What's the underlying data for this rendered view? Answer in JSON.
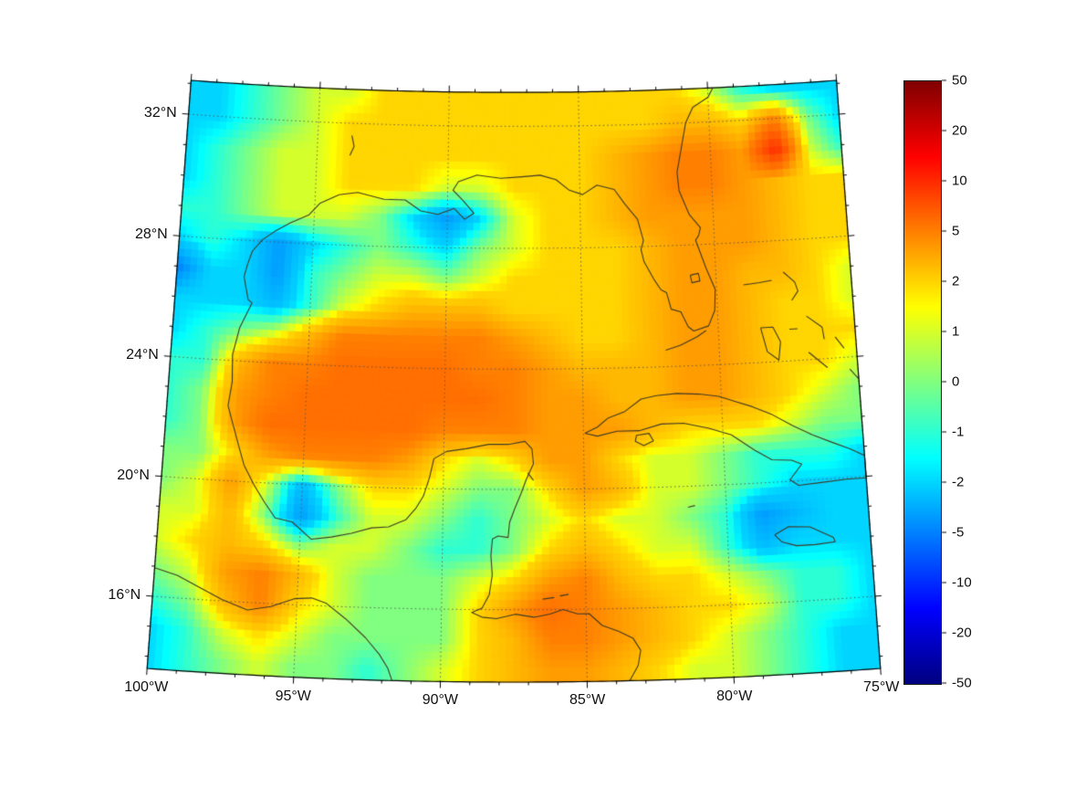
{
  "figure": {
    "background": "#ffffff"
  },
  "chart_data": {
    "type": "heatmap",
    "title": "",
    "projection": {
      "type": "lambert-conformal-conic",
      "center_lon": -87.5,
      "standard_parallels": [
        15,
        25
      ]
    },
    "lon_range": [
      -100,
      -75
    ],
    "lat_range": [
      13.6,
      33.1
    ],
    "lon_ticks": [
      "100°W",
      "95°W",
      "90°W",
      "85°W",
      "80°W",
      "75°W"
    ],
    "lon_tick_values": [
      -100,
      -95,
      -90,
      -85,
      -80,
      -75
    ],
    "lat_ticks": [
      "32°N",
      "28°N",
      "24°N",
      "20°N",
      "16°N"
    ],
    "lat_tick_values": [
      32,
      28,
      24,
      20,
      16
    ],
    "colorbar_ticks": [
      50,
      20,
      10,
      5,
      2,
      1,
      0,
      -1,
      -2,
      -5,
      -10,
      -20,
      -50
    ],
    "color_levels": [
      -50,
      -20,
      -10,
      -5,
      -2,
      -1,
      0,
      1,
      2,
      5,
      10,
      20,
      50
    ],
    "colormap": "jet",
    "colormap_stops": [
      {
        "color": "#00007f",
        "pos": 0
      },
      {
        "color": "#0000ff",
        "pos": 12.5
      },
      {
        "color": "#00ffff",
        "pos": 37.5
      },
      {
        "color": "#ffff00",
        "pos": 62.5
      },
      {
        "color": "#ff0000",
        "pos": 87.5
      },
      {
        "color": "#7f0000",
        "pos": 100
      }
    ],
    "coastline_color": "#403a26",
    "grid": {
      "lon_start": -100,
      "lon_step": 1.25,
      "lat_start": 33,
      "lat_step": -1,
      "values": [
        [
          -2,
          -2,
          -1,
          0,
          1,
          1,
          2,
          2,
          2,
          2,
          2,
          2,
          2,
          2,
          2,
          2,
          1,
          -1,
          -2,
          -2,
          -2
        ],
        [
          -2,
          -2,
          -1,
          0,
          1,
          2,
          2,
          2,
          2,
          2,
          2,
          2,
          2,
          2,
          2,
          3,
          3,
          2,
          5,
          0,
          -2
        ],
        [
          -2,
          -1,
          0,
          1,
          1,
          2,
          2,
          2,
          2,
          2,
          2,
          2,
          2,
          3,
          4,
          5,
          5,
          4,
          10,
          1,
          -1
        ],
        [
          -2,
          -1,
          0,
          1,
          1,
          2,
          2,
          2,
          1,
          1,
          2,
          2,
          2,
          3,
          4,
          5,
          5,
          4,
          3,
          2,
          2
        ],
        [
          -1,
          -1,
          0,
          1,
          1,
          1,
          0,
          -2,
          -4,
          -2,
          1,
          2,
          2,
          3,
          4,
          4,
          4,
          4,
          3,
          2,
          2
        ],
        [
          -2,
          -1,
          -2,
          -4,
          -2,
          -1,
          0,
          -1,
          -2,
          0,
          1,
          2,
          2,
          2,
          3,
          4,
          4,
          4,
          3,
          2,
          2
        ],
        [
          -5,
          -2,
          -2,
          -4,
          -1,
          0,
          1,
          1,
          0,
          1,
          2,
          2,
          2,
          2,
          3,
          4,
          4,
          3,
          3,
          2,
          1
        ],
        [
          -2,
          -2,
          -2,
          -3,
          -1,
          1,
          2,
          3,
          3,
          3,
          2,
          2,
          2,
          2,
          3,
          4,
          4,
          3,
          2,
          2,
          1
        ],
        [
          -2,
          -1,
          0,
          1,
          3,
          5,
          5,
          5,
          5,
          5,
          4,
          3,
          2,
          2,
          3,
          4,
          4,
          3,
          2,
          2,
          2
        ],
        [
          -1,
          -1,
          3,
          5,
          5,
          6,
          6,
          6,
          6,
          5,
          5,
          4,
          3,
          3,
          3,
          4,
          4,
          3,
          2,
          2,
          1
        ],
        [
          -1,
          0,
          4,
          5,
          6,
          6,
          6,
          6,
          6,
          6,
          5,
          4,
          4,
          3,
          3,
          4,
          4,
          3,
          2,
          1,
          0
        ],
        [
          -1,
          0,
          4,
          6,
          6,
          6,
          6,
          6,
          5,
          5,
          5,
          4,
          4,
          4,
          3,
          2,
          2,
          2,
          1,
          0,
          0
        ],
        [
          0,
          0,
          2,
          4,
          5,
          5,
          5,
          4,
          2,
          1,
          2,
          4,
          4,
          2,
          1,
          1,
          0,
          -1,
          -1,
          -1,
          -2
        ],
        [
          0,
          1,
          4,
          1,
          -3,
          0,
          2,
          2,
          1,
          0,
          0,
          2,
          4,
          3,
          1,
          1,
          0,
          -1,
          -2,
          -2,
          -2
        ],
        [
          1,
          1,
          3,
          0,
          -4,
          -1,
          1,
          1,
          0,
          -1,
          0,
          1,
          2,
          1,
          1,
          0,
          -1,
          -4,
          -3,
          -2,
          -2
        ],
        [
          1,
          2,
          3,
          2,
          0,
          1,
          1,
          0,
          -1,
          -1,
          0,
          2,
          3,
          2,
          1,
          1,
          -1,
          -3,
          -2,
          -2,
          -2
        ],
        [
          0,
          1,
          4,
          5,
          3,
          1,
          0,
          0,
          0,
          1,
          2,
          4,
          5,
          3,
          2,
          2,
          1,
          0,
          -1,
          -1,
          -2
        ],
        [
          -1,
          0,
          3,
          5,
          2,
          1,
          0,
          0,
          0,
          2,
          4,
          6,
          5,
          4,
          3,
          2,
          2,
          1,
          -1,
          -1,
          -2
        ],
        [
          -2,
          -1,
          1,
          2,
          1,
          0,
          0,
          0,
          0,
          2,
          3,
          5,
          5,
          4,
          3,
          2,
          1,
          0,
          -1,
          -2,
          -2
        ],
        [
          -2,
          -1,
          0,
          1,
          0,
          0,
          -1,
          0,
          1,
          2,
          3,
          4,
          4,
          3,
          2,
          1,
          1,
          0,
          -1,
          -2,
          -2
        ]
      ]
    },
    "coastlines": [
      [
        [
          -79.8,
          33.1
        ],
        [
          -80.0,
          32.8
        ],
        [
          -80.6,
          32.5
        ],
        [
          -80.9,
          32.0
        ],
        [
          -81.1,
          31.2
        ],
        [
          -81.3,
          30.4
        ],
        [
          -81.25,
          29.8
        ],
        [
          -80.9,
          29.0
        ],
        [
          -80.5,
          28.55
        ],
        [
          -80.58,
          28.3
        ],
        [
          -80.7,
          28.15
        ],
        [
          -80.35,
          27.2
        ],
        [
          -80.05,
          26.5
        ],
        [
          -80.1,
          25.8
        ],
        [
          -80.35,
          25.3
        ],
        [
          -80.9,
          25.15
        ],
        [
          -81.1,
          25.3
        ],
        [
          -81.35,
          25.8
        ],
        [
          -81.7,
          25.9
        ],
        [
          -81.85,
          26.45
        ],
        [
          -82.05,
          26.55
        ],
        [
          -82.3,
          26.9
        ],
        [
          -82.65,
          27.5
        ],
        [
          -82.75,
          27.9
        ],
        [
          -82.65,
          28.2
        ],
        [
          -82.85,
          28.9
        ],
        [
          -83.3,
          29.4
        ],
        [
          -83.7,
          29.9
        ],
        [
          -84.35,
          30.05
        ],
        [
          -84.9,
          29.75
        ],
        [
          -85.4,
          29.9
        ],
        [
          -85.9,
          30.25
        ],
        [
          -86.5,
          30.4
        ],
        [
          -87.2,
          30.35
        ],
        [
          -88.0,
          30.3
        ],
        [
          -88.9,
          30.4
        ],
        [
          -89.6,
          30.18
        ],
        [
          -89.8,
          29.9
        ],
        [
          -89.4,
          29.55
        ],
        [
          -89.0,
          29.15
        ],
        [
          -89.35,
          28.95
        ],
        [
          -89.75,
          29.3
        ],
        [
          -90.35,
          29.1
        ],
        [
          -91.0,
          29.2
        ],
        [
          -91.6,
          29.55
        ],
        [
          -92.4,
          29.55
        ],
        [
          -93.4,
          29.75
        ],
        [
          -94.1,
          29.65
        ],
        [
          -94.8,
          29.35
        ],
        [
          -95.2,
          28.95
        ],
        [
          -95.9,
          28.65
        ],
        [
          -96.45,
          28.35
        ],
        [
          -96.9,
          28.05
        ],
        [
          -97.25,
          27.65
        ],
        [
          -97.4,
          27.2
        ],
        [
          -97.5,
          26.8
        ],
        [
          -97.3,
          26.05
        ],
        [
          -97.15,
          25.95
        ],
        [
          -97.55,
          25.1
        ],
        [
          -97.75,
          24.2
        ],
        [
          -97.7,
          23.3
        ],
        [
          -97.8,
          22.5
        ],
        [
          -97.55,
          21.8
        ],
        [
          -97.3,
          21.1
        ],
        [
          -97.1,
          20.55
        ],
        [
          -96.7,
          19.9
        ],
        [
          -96.3,
          19.35
        ],
        [
          -95.9,
          18.85
        ],
        [
          -95.3,
          18.75
        ],
        [
          -94.6,
          18.2
        ],
        [
          -93.9,
          18.3
        ],
        [
          -93.2,
          18.45
        ],
        [
          -92.5,
          18.65
        ],
        [
          -91.9,
          18.7
        ],
        [
          -91.55,
          18.85
        ],
        [
          -91.3,
          18.95
        ],
        [
          -90.95,
          19.35
        ],
        [
          -90.7,
          19.75
        ],
        [
          -90.5,
          20.35
        ],
        [
          -90.35,
          21.0
        ],
        [
          -89.9,
          21.25
        ],
        [
          -89.2,
          21.35
        ],
        [
          -88.4,
          21.5
        ],
        [
          -87.7,
          21.5
        ],
        [
          -87.1,
          21.6
        ],
        [
          -86.85,
          21.35
        ],
        [
          -86.8,
          20.85
        ],
        [
          -87.05,
          20.35
        ],
        [
          -87.25,
          19.85
        ],
        [
          -87.45,
          19.4
        ],
        [
          -87.65,
          18.9
        ],
        [
          -87.7,
          18.4
        ],
        [
          -88.05,
          18.45
        ],
        [
          -88.25,
          18.35
        ],
        [
          -88.3,
          17.8
        ],
        [
          -88.25,
          17.15
        ],
        [
          -88.35,
          16.5
        ],
        [
          -88.6,
          16.05
        ],
        [
          -88.95,
          15.9
        ],
        [
          -88.6,
          15.75
        ],
        [
          -88.1,
          15.7
        ],
        [
          -87.45,
          15.85
        ],
        [
          -86.8,
          15.75
        ],
        [
          -86.25,
          15.85
        ],
        [
          -85.8,
          16.0
        ],
        [
          -85.3,
          15.85
        ],
        [
          -84.9,
          15.85
        ],
        [
          -84.45,
          15.45
        ],
        [
          -83.9,
          15.25
        ],
        [
          -83.4,
          15.0
        ],
        [
          -83.15,
          14.6
        ],
        [
          -83.25,
          14.1
        ],
        [
          -83.55,
          13.6
        ]
      ],
      [
        [
          -100.0,
          16.95
        ],
        [
          -99.2,
          16.75
        ],
        [
          -98.4,
          16.4
        ],
        [
          -97.6,
          16.05
        ],
        [
          -96.7,
          15.75
        ],
        [
          -95.9,
          15.9
        ],
        [
          -95.1,
          16.2
        ],
        [
          -94.5,
          16.25
        ],
        [
          -94.0,
          16.1
        ],
        [
          -93.3,
          15.6
        ],
        [
          -92.6,
          15.0
        ],
        [
          -92.1,
          14.45
        ],
        [
          -91.8,
          14.0
        ],
        [
          -91.65,
          13.6
        ]
      ],
      [
        [
          -84.95,
          21.85
        ],
        [
          -84.5,
          22.05
        ],
        [
          -84.1,
          22.35
        ],
        [
          -83.5,
          22.55
        ],
        [
          -82.9,
          22.95
        ],
        [
          -82.35,
          23.05
        ],
        [
          -81.6,
          23.1
        ],
        [
          -80.8,
          23.05
        ],
        [
          -80.1,
          22.95
        ],
        [
          -79.5,
          22.75
        ],
        [
          -78.9,
          22.55
        ],
        [
          -78.2,
          22.25
        ],
        [
          -77.5,
          21.85
        ],
        [
          -76.8,
          21.5
        ],
        [
          -76.1,
          21.2
        ],
        [
          -75.5,
          20.95
        ],
        [
          -75.0,
          20.7
        ],
        [
          -75.0,
          19.95
        ],
        [
          -75.7,
          19.95
        ],
        [
          -76.6,
          19.9
        ],
        [
          -77.4,
          19.85
        ],
        [
          -77.7,
          20.05
        ],
        [
          -77.25,
          20.55
        ],
        [
          -77.6,
          20.7
        ],
        [
          -78.3,
          20.75
        ],
        [
          -78.9,
          21.1
        ],
        [
          -79.7,
          21.65
        ],
        [
          -80.5,
          21.9
        ],
        [
          -81.4,
          22.1
        ],
        [
          -82.2,
          22.1
        ],
        [
          -83.0,
          21.9
        ],
        [
          -83.8,
          21.9
        ],
        [
          -84.5,
          21.75
        ],
        [
          -84.95,
          21.85
        ]
      ],
      [
        [
          -83.1,
          21.75
        ],
        [
          -82.65,
          21.8
        ],
        [
          -82.5,
          21.55
        ],
        [
          -82.85,
          21.4
        ],
        [
          -83.15,
          21.55
        ],
        [
          -83.1,
          21.75
        ]
      ],
      [
        [
          -78.35,
          18.25
        ],
        [
          -77.85,
          18.5
        ],
        [
          -77.1,
          18.45
        ],
        [
          -76.3,
          18.05
        ],
        [
          -76.25,
          17.9
        ],
        [
          -76.95,
          17.85
        ],
        [
          -77.6,
          17.85
        ],
        [
          -78.1,
          18.0
        ],
        [
          -78.35,
          18.25
        ]
      ],
      [
        [
          -79.0,
          26.6
        ],
        [
          -78.4,
          26.65
        ],
        [
          -77.95,
          26.7
        ]
      ],
      [
        [
          -77.5,
          26.95
        ],
        [
          -77.1,
          26.6
        ],
        [
          -77.0,
          26.3
        ],
        [
          -77.25,
          26.0
        ]
      ],
      [
        [
          -78.45,
          25.15
        ],
        [
          -78.0,
          25.15
        ],
        [
          -77.75,
          24.65
        ],
        [
          -77.85,
          24.05
        ],
        [
          -78.25,
          24.35
        ],
        [
          -78.45,
          25.15
        ]
      ],
      [
        [
          -77.4,
          25.05
        ],
        [
          -77.1,
          25.05
        ]
      ],
      [
        [
          -76.75,
          25.45
        ],
        [
          -76.2,
          25.05
        ],
        [
          -76.15,
          24.65
        ]
      ],
      [
        [
          -75.75,
          24.7
        ],
        [
          -75.45,
          24.3
        ]
      ],
      [
        [
          -76.75,
          24.25
        ],
        [
          -76.1,
          23.7
        ]
      ],
      [
        [
          -75.3,
          23.6
        ],
        [
          -75.0,
          23.25
        ]
      ],
      [
        [
          -80.45,
          25.15
        ],
        [
          -80.8,
          24.95
        ],
        [
          -81.4,
          24.7
        ],
        [
          -81.95,
          24.55
        ]
      ],
      [
        [
          -81.35,
          19.3
        ],
        [
          -81.1,
          19.35
        ]
      ],
      [
        [
          -87.0,
          20.55
        ],
        [
          -86.8,
          20.3
        ]
      ],
      [
        [
          -80.95,
          27.0
        ],
        [
          -80.65,
          27.05
        ],
        [
          -80.6,
          26.8
        ],
        [
          -80.9,
          26.75
        ],
        [
          -80.95,
          27.0
        ]
      ],
      [
        [
          -93.7,
          31.6
        ],
        [
          -93.6,
          31.25
        ],
        [
          -93.75,
          30.95
        ]
      ],
      [
        [
          -86.5,
          16.35
        ],
        [
          -86.1,
          16.4
        ]
      ],
      [
        [
          -85.9,
          16.45
        ],
        [
          -85.6,
          16.5
        ]
      ]
    ]
  }
}
